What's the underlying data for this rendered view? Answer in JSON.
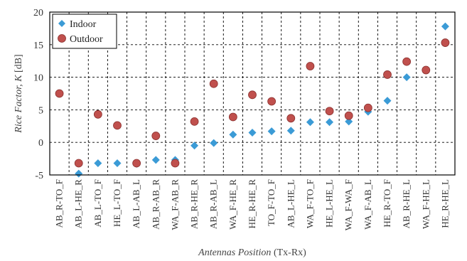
{
  "chart_data": {
    "type": "scatter",
    "categories": [
      "AB_R-TO_F",
      "AB_L-HE_R",
      "AB_L-TO_F",
      "HE_L-TO_F",
      "AB_L-AB_L",
      "AB_R-AB_R",
      "WA_F-AB_R",
      "AB_R-HE_R",
      "AB_R-AB_L",
      "WA_F-HE_R",
      "HE_R-HE_R",
      "TO_F-TO_F",
      "AB_L-HE_L",
      "WA_F-TO_F",
      "HE_L-HE_L",
      "WA_F-WA_F",
      "WA_F-AB_L",
      "HE_R-TO_F",
      "AB_R-HE_L",
      "WA_F-HE_L",
      "HE_R-HE_L"
    ],
    "series": [
      {
        "name": "Indoor",
        "color": "#3b9bd6",
        "marker": "diamond",
        "values": [
          null,
          -4.8,
          -3.2,
          -3.2,
          -3.3,
          -2.7,
          -2.7,
          -0.5,
          -0.1,
          1.2,
          1.5,
          1.7,
          1.8,
          3.1,
          3.1,
          3.2,
          4.7,
          6.4,
          10.0,
          null,
          17.8
        ]
      },
      {
        "name": "Outdoor",
        "color": "#c0504d",
        "marker": "circle",
        "values": [
          7.5,
          -3.2,
          4.3,
          2.6,
          -3.2,
          1.0,
          -3.2,
          3.2,
          9.0,
          3.9,
          7.3,
          6.3,
          3.7,
          11.7,
          4.8,
          4.1,
          5.3,
          10.4,
          12.4,
          11.1,
          15.3
        ]
      }
    ],
    "ylabel_main": "Rice Factor",
    "ylabel_var": "K",
    "ylabel_unit": "[dB]",
    "xlabel_main": "Antennas Position",
    "xlabel_unit": "(Tx-Rx)",
    "ylim": [
      -5,
      20
    ],
    "yticks": [
      -5,
      0,
      5,
      10,
      15,
      20
    ],
    "grid": true,
    "legend_position": "top-left"
  }
}
